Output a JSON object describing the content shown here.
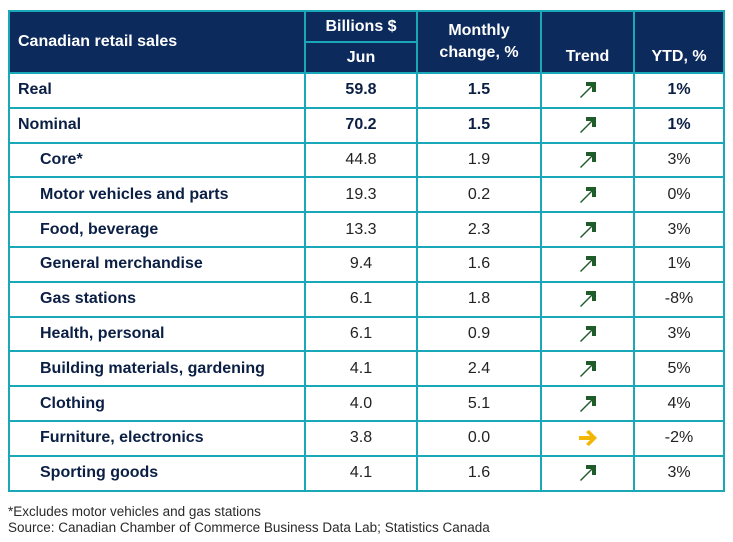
{
  "header": {
    "title": "Canadian retail sales",
    "col_billions": "Billions $",
    "col_month": "Jun",
    "col_monthly_change": "Monthly change, %",
    "col_trend": "Trend",
    "col_ytd": "YTD, %"
  },
  "colors": {
    "header_bg": "#0c2a5c",
    "border": "#1aa8b8",
    "trend_up": "#1f5c2a",
    "trend_flat": "#f2b705"
  },
  "rows": [
    {
      "label": "Real",
      "value": "59.8",
      "change": "1.5",
      "trend": "up-arrow-icon",
      "ytd": "1%"
    },
    {
      "label": "Nominal",
      "value": "70.2",
      "change": "1.5",
      "trend": "up-arrow-icon",
      "ytd": "1%"
    },
    {
      "label": "Core*",
      "value": "44.8",
      "change": "1.9",
      "trend": "up-arrow-icon",
      "ytd": "3%"
    },
    {
      "label": "Motor vehicles and parts",
      "value": "19.3",
      "change": "0.2",
      "trend": "up-arrow-icon",
      "ytd": "0%"
    },
    {
      "label": "Food, beverage",
      "value": "13.3",
      "change": "2.3",
      "trend": "up-arrow-icon",
      "ytd": "3%"
    },
    {
      "label": "General merchandise",
      "value": "9.4",
      "change": "1.6",
      "trend": "up-arrow-icon",
      "ytd": "1%"
    },
    {
      "label": "Gas stations",
      "value": "6.1",
      "change": "1.8",
      "trend": "up-arrow-icon",
      "ytd": "-8%"
    },
    {
      "label": "Health, personal",
      "value": "6.1",
      "change": "0.9",
      "trend": "up-arrow-icon",
      "ytd": "3%"
    },
    {
      "label": "Building materials, gardening",
      "value": "4.1",
      "change": "2.4",
      "trend": "up-arrow-icon",
      "ytd": "5%"
    },
    {
      "label": "Clothing",
      "value": "4.0",
      "change": "5.1",
      "trend": "up-arrow-icon",
      "ytd": "4%"
    },
    {
      "label": "Furniture, electronics",
      "value": "3.8",
      "change": "0.0",
      "trend": "right-arrow-icon",
      "ytd": "-2%"
    },
    {
      "label": "Sporting goods",
      "value": "4.1",
      "change": "1.6",
      "trend": "up-arrow-icon",
      "ytd": "3%"
    }
  ],
  "footnotes": {
    "note": "*Excludes motor vehicles and gas stations",
    "source": "Source: Canadian Chamber of Commerce Business Data Lab; Statistics Canada"
  }
}
